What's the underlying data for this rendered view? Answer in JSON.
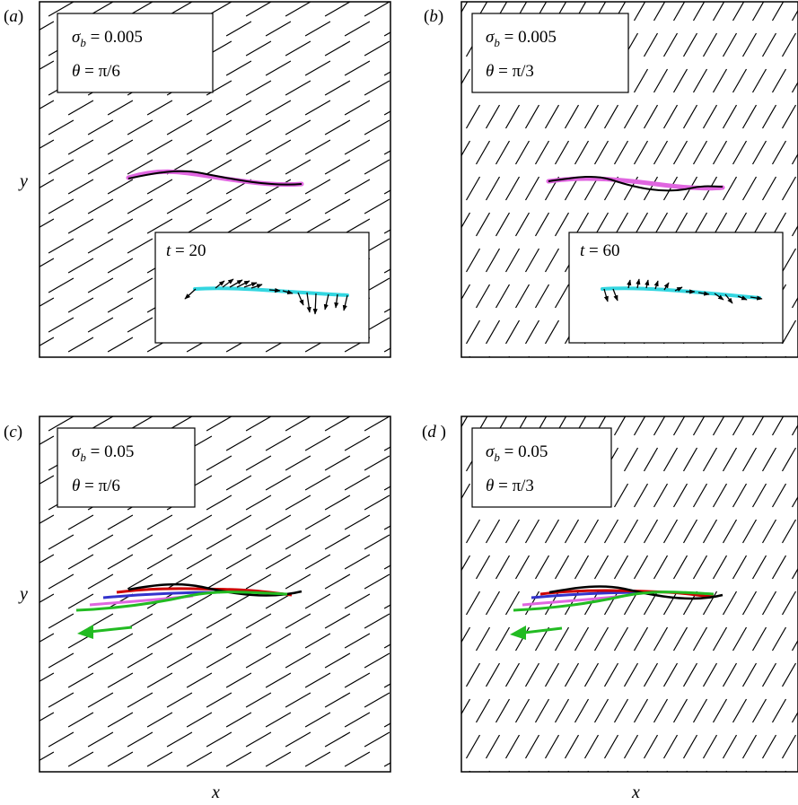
{
  "panels": [
    {
      "id": "a",
      "label": "(a)",
      "sigma_value": "0.005",
      "theta_value": "π/6",
      "angle_deg": 30,
      "inset_time": "20",
      "show_y_label": true,
      "has_inset": true
    },
    {
      "id": "b",
      "label": "(b)",
      "sigma_value": "0.005",
      "theta_value": "π/3",
      "angle_deg": 60,
      "inset_time": "60",
      "show_y_label": false,
      "has_inset": true
    },
    {
      "id": "c",
      "label": "(c)",
      "sigma_value": "0.05",
      "theta_value": "π/6",
      "angle_deg": 30,
      "show_y_label": true,
      "has_inset": false
    },
    {
      "id": "d",
      "label": "(d)",
      "sigma_value": "0.05",
      "theta_value": "π/3",
      "angle_deg": 60,
      "show_y_label": false,
      "has_inset": false
    }
  ],
  "axis_labels": {
    "x": "x",
    "y": "y"
  },
  "symbols": {
    "sigma": "σ",
    "sigma_sub": "b",
    "theta": "θ",
    "time": "t",
    "equals": " = "
  },
  "colors": {
    "black_filament": "#000000",
    "magenta_filament": "#e066e0",
    "cyan_filament": "#33d6e0",
    "red_filament": "#cc0000",
    "blue_filament": "#3333cc",
    "green_filament": "#22bb22",
    "director_lines": "#000000"
  }
}
